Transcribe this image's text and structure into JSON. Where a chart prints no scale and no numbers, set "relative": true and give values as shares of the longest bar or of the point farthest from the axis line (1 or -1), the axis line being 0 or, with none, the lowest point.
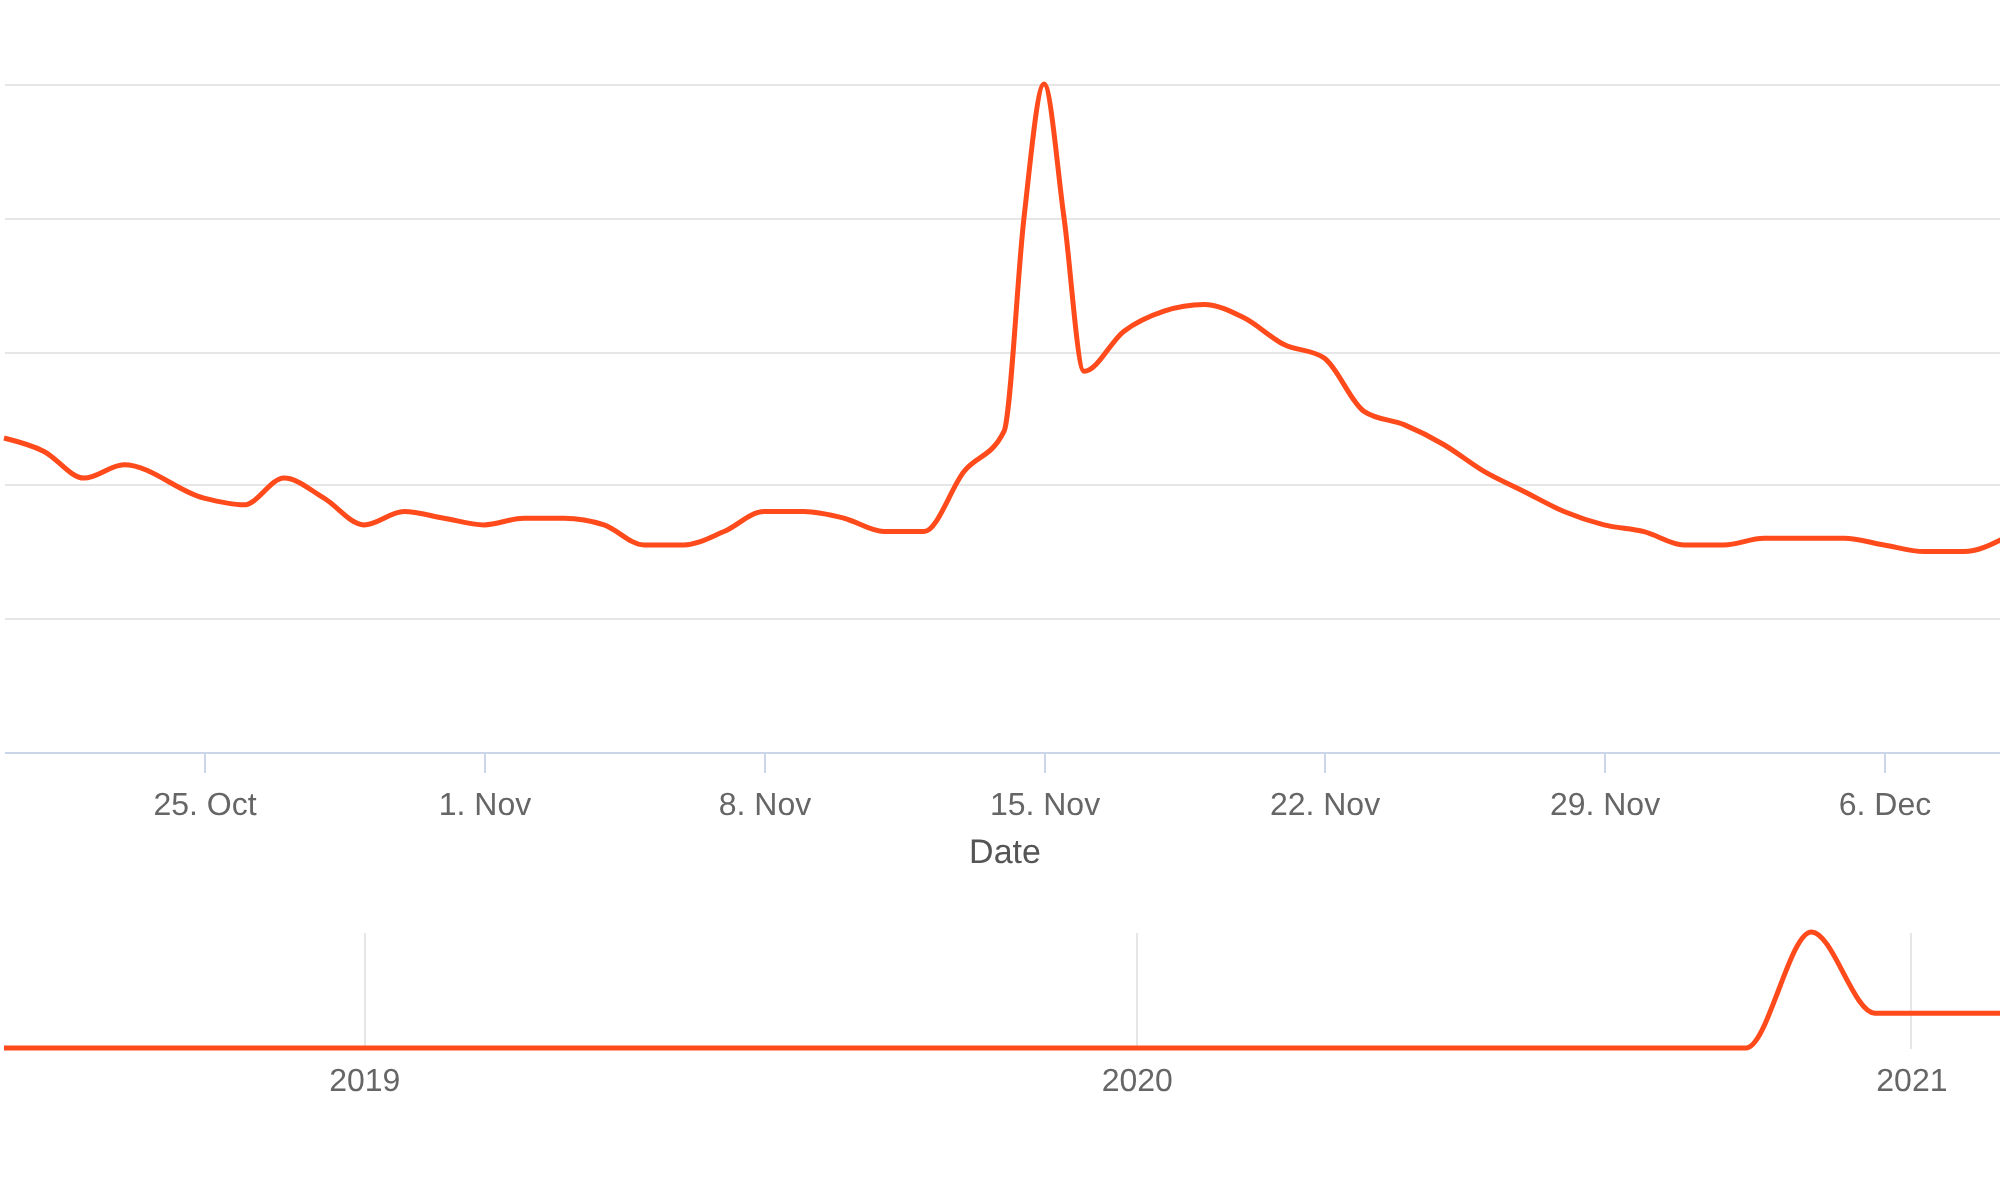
{
  "chart_data": [
    {
      "type": "line",
      "xlabel": "Date",
      "relative": true,
      "grid": "y",
      "x": [
        "--10-20",
        "--10-21",
        "--10-22",
        "--10-23",
        "--10-25",
        "--10-26",
        "--10-27",
        "--10-28",
        "--10-29",
        "--10-30",
        "--10-31",
        "--11-01",
        "--11-02",
        "--11-03",
        "--11-04",
        "--11-05",
        "--11-06",
        "--11-07",
        "--11-08",
        "--11-09",
        "--11-10",
        "--11-11",
        "--11-12",
        "--11-13",
        "--11-14",
        "--11-14T12:00",
        "--11-15",
        "--11-15T12:00",
        "--11-16",
        "--11-17",
        "--11-18",
        "--11-19",
        "--11-20",
        "--11-21",
        "--11-22",
        "--11-23",
        "--11-24",
        "--11-25",
        "--11-26",
        "--11-27",
        "--11-28",
        "--11-29",
        "--11-30",
        "--12-01",
        "--12-02",
        "--12-03",
        "--12-04",
        "--12-05",
        "--12-06",
        "--12-07",
        "--12-08",
        "--12-09"
      ],
      "series": [
        {
          "color": "#ff4a1c",
          "values": [
            0.47,
            0.45,
            0.41,
            0.43,
            0.38,
            0.37,
            0.41,
            0.38,
            0.34,
            0.36,
            0.35,
            0.34,
            0.35,
            0.35,
            0.34,
            0.31,
            0.31,
            0.33,
            0.36,
            0.36,
            0.35,
            0.33,
            0.33,
            0.42,
            0.48,
            0.8,
            1,
            0.8,
            0.57,
            0.63,
            0.66,
            0.67,
            0.65,
            0.61,
            0.59,
            0.51,
            0.49,
            0.46,
            0.42,
            0.39,
            0.36,
            0.34,
            0.33,
            0.31,
            0.31,
            0.32,
            0.32,
            0.32,
            0.31,
            0.3,
            0.3,
            0.32
          ]
        }
      ],
      "xlim": [
        "--10-20",
        "--12-09"
      ],
      "xticks": [
        {
          "value": "--10-25",
          "label": "25. Oct"
        },
        {
          "value": "--11-01",
          "label": "1. Nov"
        },
        {
          "value": "--11-08",
          "label": "8. Nov"
        },
        {
          "value": "--11-15",
          "label": "15. Nov"
        },
        {
          "value": "--11-22",
          "label": "22. Nov"
        },
        {
          "value": "--11-29",
          "label": "29. Nov"
        },
        {
          "value": "--12-06",
          "label": "6. Dec"
        }
      ]
    },
    {
      "type": "line",
      "relative": true,
      "grid": "x",
      "x": [
        "2018-07-15",
        "2019-06-01",
        "2020-06-01",
        "2020-10-15",
        "2020-11-15",
        "2020-12-15",
        "2021-02-14"
      ],
      "series": [
        {
          "color": "#ff4a1c",
          "values": [
            0,
            0,
            0,
            0,
            1,
            0.3,
            0.3
          ]
        }
      ],
      "xlim": [
        "2018-07-15",
        "2021-02-14"
      ],
      "xticks": [
        {
          "value": "2019-01-01",
          "label": "2019"
        },
        {
          "value": "2020-01-01",
          "label": "2020"
        },
        {
          "value": "2021-01-01",
          "label": "2021"
        }
      ]
    }
  ]
}
